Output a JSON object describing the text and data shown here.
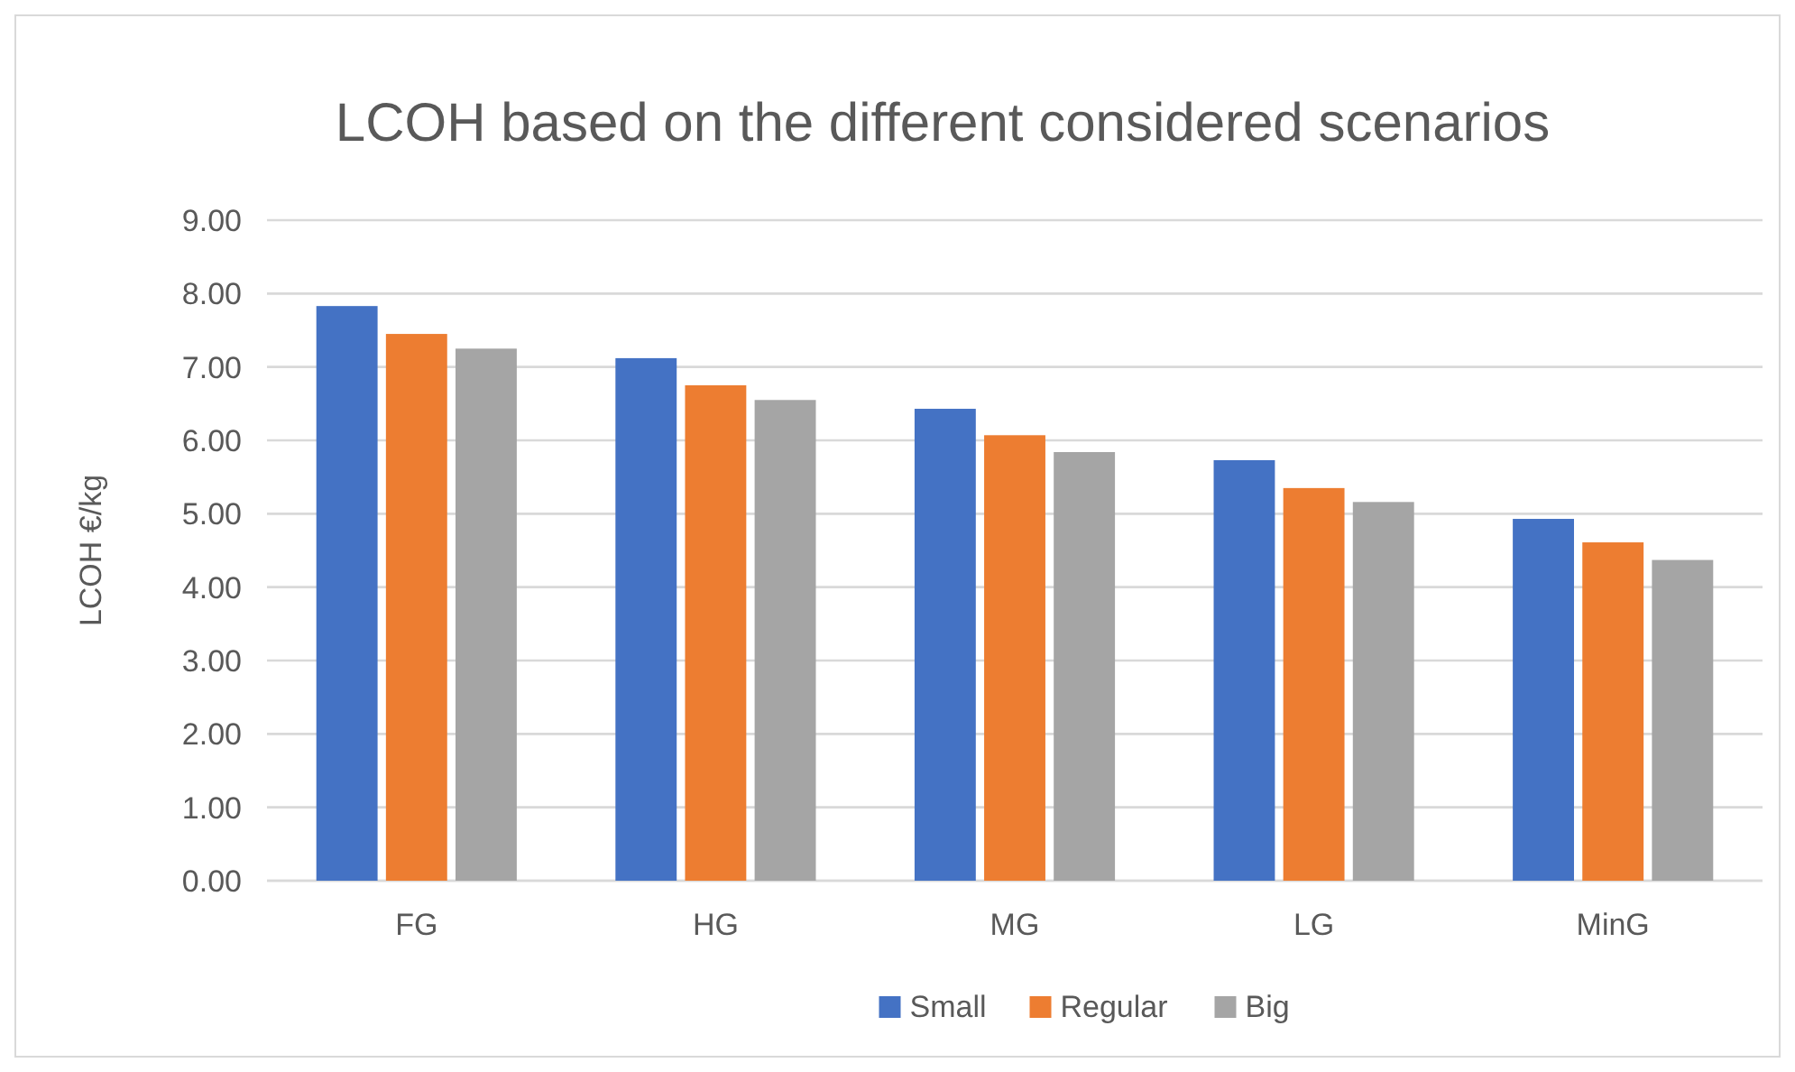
{
  "chart_data": {
    "type": "bar",
    "title": "LCOH based on the different considered scenarios",
    "ylabel": "LCOH €/kg",
    "categories": [
      "FG",
      "HG",
      "MG",
      "LG",
      "MinG"
    ],
    "series": [
      {
        "name": "Small",
        "color": "#4472c4",
        "values": [
          7.83,
          7.12,
          6.43,
          5.73,
          4.93
        ]
      },
      {
        "name": "Regular",
        "color": "#ed7d31",
        "values": [
          7.45,
          6.75,
          6.07,
          5.35,
          4.61
        ]
      },
      {
        "name": "Big",
        "color": "#a5a5a5",
        "values": [
          7.25,
          6.55,
          5.84,
          5.16,
          4.37
        ]
      }
    ],
    "ylim": [
      0,
      9
    ],
    "yticks": [
      {
        "value": 0,
        "label": "0.00"
      },
      {
        "value": 1,
        "label": "1.00"
      },
      {
        "value": 2,
        "label": "2.00"
      },
      {
        "value": 3,
        "label": "3.00"
      },
      {
        "value": 4,
        "label": "4.00"
      },
      {
        "value": 5,
        "label": "5.00"
      },
      {
        "value": 6,
        "label": "6.00"
      },
      {
        "value": 7,
        "label": "7.00"
      },
      {
        "value": 8,
        "label": "8.00"
      },
      {
        "value": 9,
        "label": "9.00"
      }
    ],
    "grid": "y",
    "legend": "bottom"
  }
}
